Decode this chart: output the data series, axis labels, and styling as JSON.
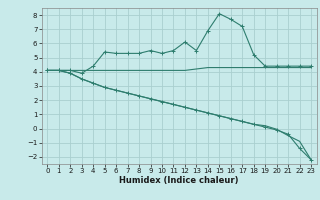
{
  "xlabel": "Humidex (Indice chaleur)",
  "bg_color": "#c8eaea",
  "grid_color": "#aacfcf",
  "line_color": "#2e7d6e",
  "xlim": [
    -0.5,
    23.5
  ],
  "ylim": [
    -2.5,
    8.5
  ],
  "xticks": [
    0,
    1,
    2,
    3,
    4,
    5,
    6,
    7,
    8,
    9,
    10,
    11,
    12,
    13,
    14,
    15,
    16,
    17,
    18,
    19,
    20,
    21,
    22,
    23
  ],
  "yticks": [
    -2,
    -1,
    0,
    1,
    2,
    3,
    4,
    5,
    6,
    7,
    8
  ],
  "series1_x": [
    0,
    1,
    2,
    3,
    4,
    5,
    6,
    7,
    8,
    9,
    10,
    11,
    12,
    13,
    14,
    15,
    16,
    17,
    18,
    19,
    20,
    21,
    22,
    23
  ],
  "series1_y": [
    4.1,
    4.1,
    4.1,
    3.9,
    4.4,
    5.4,
    5.3,
    5.3,
    5.3,
    5.5,
    5.3,
    5.5,
    6.1,
    5.5,
    6.9,
    8.1,
    7.7,
    7.2,
    5.2,
    4.4,
    4.4,
    4.4,
    4.4,
    4.4
  ],
  "series2_x": [
    0,
    1,
    2,
    3,
    4,
    5,
    6,
    7,
    8,
    9,
    10,
    11,
    12,
    13,
    14,
    15,
    16,
    17,
    18,
    19,
    20,
    21,
    22,
    23
  ],
  "series2_y": [
    4.1,
    4.1,
    4.1,
    4.1,
    4.1,
    4.1,
    4.1,
    4.1,
    4.1,
    4.1,
    4.1,
    4.1,
    4.1,
    4.2,
    4.3,
    4.3,
    4.3,
    4.3,
    4.3,
    4.3,
    4.3,
    4.3,
    4.3,
    4.3
  ],
  "series3_x": [
    0,
    1,
    2,
    3,
    4,
    5,
    6,
    7,
    8,
    9,
    10,
    11,
    12,
    13,
    14,
    15,
    16,
    17,
    18,
    19,
    20,
    21,
    22,
    23
  ],
  "series3_y": [
    4.1,
    4.1,
    3.9,
    3.5,
    3.2,
    2.9,
    2.7,
    2.5,
    2.3,
    2.1,
    1.9,
    1.7,
    1.5,
    1.3,
    1.1,
    0.9,
    0.7,
    0.5,
    0.3,
    0.1,
    -0.1,
    -0.4,
    -1.4,
    -2.2
  ],
  "series4_x": [
    0,
    1,
    2,
    3,
    4,
    5,
    6,
    7,
    8,
    9,
    10,
    11,
    12,
    13,
    14,
    15,
    16,
    17,
    18,
    19,
    20,
    21,
    22,
    23
  ],
  "series4_y": [
    4.1,
    4.1,
    3.9,
    3.5,
    3.2,
    2.9,
    2.7,
    2.5,
    2.3,
    2.1,
    1.9,
    1.7,
    1.5,
    1.3,
    1.1,
    0.9,
    0.7,
    0.5,
    0.3,
    0.2,
    -0.05,
    -0.5,
    -0.9,
    -2.2
  ],
  "tick_fontsize": 5,
  "xlabel_fontsize": 6,
  "lw": 0.8,
  "marker_size": 3
}
